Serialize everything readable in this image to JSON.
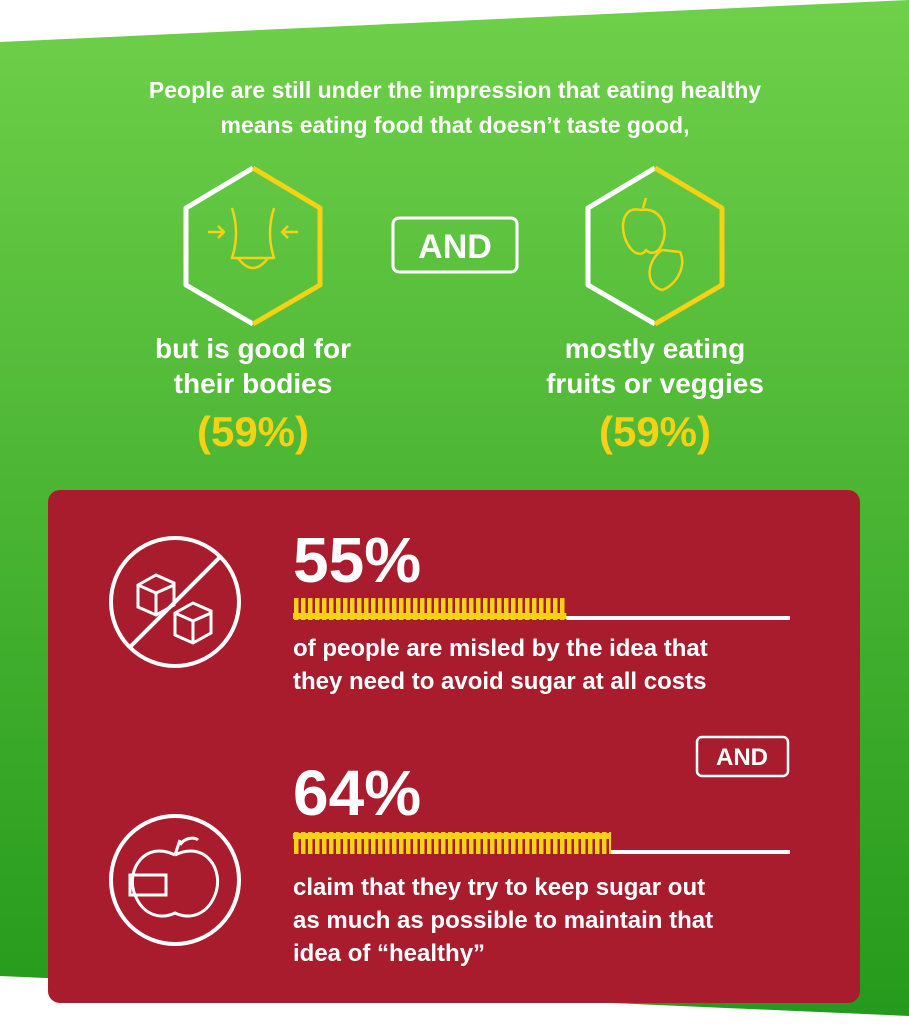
{
  "intro": [
    "People are still under the impression that eating healthy",
    "means eating food that doesn’t taste good,"
  ],
  "and_top": "AND",
  "items": [
    {
      "lines": [
        "but is good for",
        "their bodies"
      ],
      "value": 59,
      "value_label": "(59%)"
    },
    {
      "lines": [
        "mostly eating",
        "fruits or veggies"
      ],
      "value": 59,
      "value_label": "(59%)"
    }
  ],
  "stats": [
    {
      "value": 55,
      "value_label": "55%",
      "lines": [
        "of people are misled by the idea that",
        "they need to avoid sugar at all costs"
      ]
    },
    {
      "value": 64,
      "value_label": "64%",
      "lines": [
        "claim that they try to keep sugar out",
        "as much as possible to maintain that",
        "idea of “healthy”"
      ]
    }
  ],
  "and_bottom": "AND"
}
